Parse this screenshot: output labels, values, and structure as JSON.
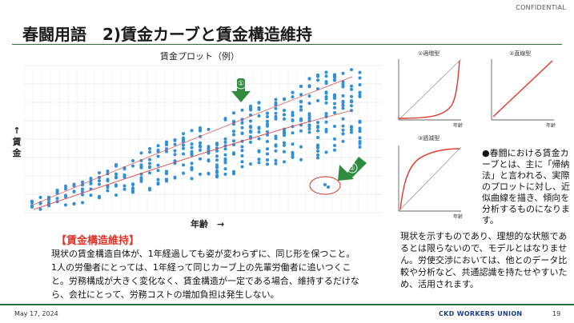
{
  "header": {
    "confidential": "CONFIDENTIAL",
    "title": "春闘用語　2)賃金カーブと賃金構造維持"
  },
  "scatter": {
    "title": "賃金プロット（例）",
    "y_label": "↑\n賃\n金",
    "x_label": "年齢　→",
    "marker1": "①",
    "marker2": "②",
    "colors": {
      "points": "#2f8fd8",
      "trend": "#e24a4a",
      "arrow": "#2e8b3e",
      "circle": "#e0352b"
    }
  },
  "mini_charts": [
    {
      "title": "①適増型",
      "xlabel": "年齢",
      "shape": "accelerating"
    },
    {
      "title": "②直線型",
      "xlabel": "年齢",
      "shape": "linear"
    },
    {
      "title": "③逓減型",
      "xlabel": "年齢",
      "shape": "decelerating"
    }
  ],
  "note": {
    "bullet": "●春闘における賃金カーブとは、主に「帰納法」と言われる、実際のプロットに対し、近似曲線を描き、傾向を分析するものになります。",
    "continuation": "現状を示すものであり、理想的な状態であるとは限らないので、モデルとはなりません。労使交渉においては、他とのデータ比較や分析など、共通認識を持たせやすいため、活用されます。"
  },
  "box": {
    "heading": "【賃金構造維持】",
    "text": "現状の賃金構造自体が、1年経過しても姿が変わらずに、同じ形を保つこと。1人の労働者にとっては、1年経って同じカーブ上の先輩労働者に追いつくこと。労務構成が大きく変化なく、賃金構造が一定である場合、維持するだけなら、会社にとって、労務コストの増加負担は発生しない。"
  },
  "footer": {
    "date": "May 17, 2024",
    "org": "CKD WORKERS UNION",
    "page": "19"
  }
}
